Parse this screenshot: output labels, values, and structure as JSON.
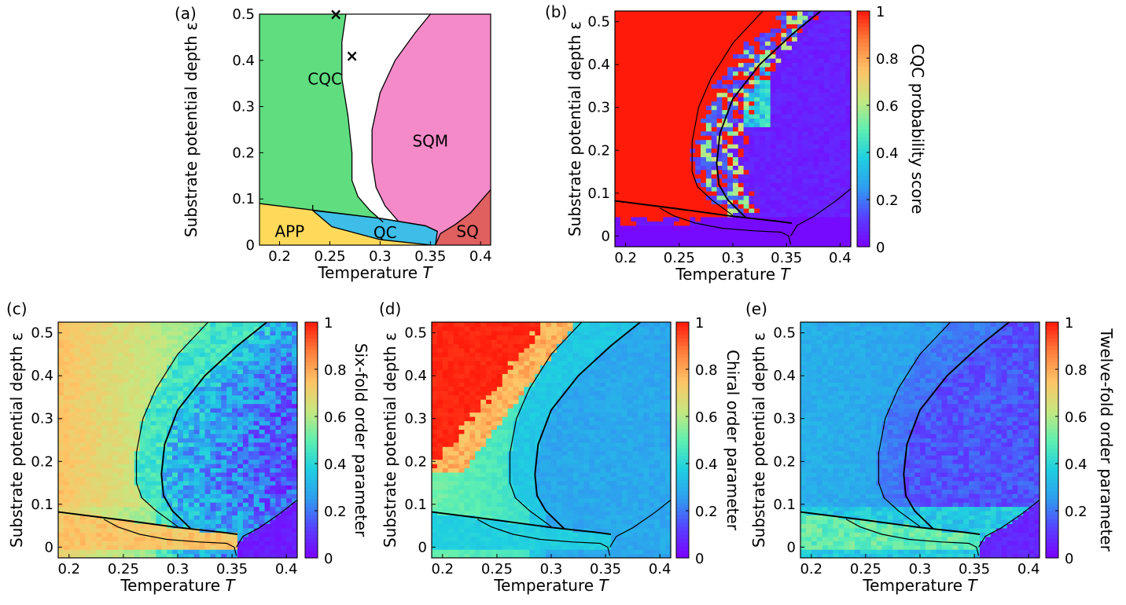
{
  "chart_data": [
    {
      "panel": "(a)",
      "type": "phase-diagram",
      "xlabel": "Temperature",
      "xlabel_var": "T",
      "ylabel": "Substrate potential depth",
      "ylabel_var": "ε",
      "xlim": [
        0.18,
        0.41
      ],
      "ylim": [
        0,
        0.5
      ],
      "xticks": [
        0.2,
        0.25,
        0.3,
        0.35,
        0.4
      ],
      "yticks": [
        0,
        0.1,
        0.2,
        0.3,
        0.4,
        0.5
      ],
      "xtick_labels": [
        "0.2",
        "0.25",
        "0.3",
        "0.35",
        "0.4"
      ],
      "ytick_labels": [
        "0",
        "0.1",
        "0.2",
        "0.3",
        "0.4",
        "0.5"
      ],
      "regions": [
        {
          "label": "CQC",
          "color": "#5fdd7f",
          "label_at": [
            0.245,
            0.36
          ]
        },
        {
          "label": "SQM",
          "color": "#f48ac8",
          "label_at": [
            0.35,
            0.225
          ]
        },
        {
          "label": "APP",
          "color": "#ffd95a",
          "label_at": [
            0.21,
            0.03
          ]
        },
        {
          "label": "QC",
          "color": "#3dbde8",
          "label_at": [
            0.305,
            0.027
          ]
        },
        {
          "label": "SQ",
          "color": "#e05f5f",
          "label_at": [
            0.387,
            0.03
          ]
        }
      ],
      "markers": [
        {
          "symbol": "×",
          "x": 0.256,
          "y": 0.5
        },
        {
          "symbol": "×",
          "x": 0.272,
          "y": 0.41
        }
      ]
    },
    {
      "panel": "(b)",
      "type": "heatmap",
      "xlabel": "Temperature",
      "xlabel_var": "T",
      "ylabel": "Substrate potential depth",
      "ylabel_var": "ε",
      "colorbar_label": "CQC probability score",
      "xlim": [
        0.19,
        0.41
      ],
      "ylim": [
        -0.025,
        0.525
      ],
      "xticks": [
        0.2,
        0.25,
        0.3,
        0.35,
        0.4
      ],
      "yticks": [
        0,
        0.1,
        0.2,
        0.3,
        0.4,
        0.5
      ],
      "xtick_labels": [
        "0.2",
        "0.25",
        "0.3",
        "0.35",
        "0.4"
      ],
      "ytick_labels": [
        "0",
        "0.1",
        "0.2",
        "0.3",
        "0.4",
        "0.5"
      ],
      "colorbar_ticks": [
        "0",
        "0.2",
        "0.4",
        "0.6",
        "0.8",
        "1"
      ],
      "pattern": "cqc"
    },
    {
      "panel": "(c)",
      "type": "heatmap",
      "xlabel": "Temperature",
      "xlabel_var": "T",
      "ylabel": "Substrate potential depth",
      "ylabel_var": "ε",
      "colorbar_label": "Six-fold order parameter",
      "xlim": [
        0.19,
        0.41
      ],
      "ylim": [
        -0.025,
        0.525
      ],
      "xticks": [
        0.2,
        0.25,
        0.3,
        0.35,
        0.4
      ],
      "yticks": [
        0,
        0.1,
        0.2,
        0.3,
        0.4,
        0.5
      ],
      "xtick_labels": [
        "0.2",
        "0.25",
        "0.3",
        "0.35",
        "0.4"
      ],
      "ytick_labels": [
        "0",
        "0.1",
        "0.2",
        "0.3",
        "0.4",
        "0.5"
      ],
      "colorbar_ticks": [
        "0",
        "0.2",
        "0.4",
        "0.6",
        "0.8",
        "1"
      ],
      "pattern": "sixfold"
    },
    {
      "panel": "(d)",
      "type": "heatmap",
      "xlabel": "Temperature",
      "xlabel_var": "T",
      "ylabel": "Substrate potential depth",
      "ylabel_var": "ε",
      "colorbar_label": "Chiral order parameter",
      "xlim": [
        0.19,
        0.41
      ],
      "ylim": [
        -0.025,
        0.525
      ],
      "xticks": [
        0.2,
        0.25,
        0.3,
        0.35,
        0.4
      ],
      "yticks": [
        0,
        0.1,
        0.2,
        0.3,
        0.4,
        0.5
      ],
      "xtick_labels": [
        "0.2",
        "0.25",
        "0.3",
        "0.35",
        "0.4"
      ],
      "ytick_labels": [
        "0",
        "0.1",
        "0.2",
        "0.3",
        "0.4",
        "0.5"
      ],
      "colorbar_ticks": [
        "0",
        "0.2",
        "0.4",
        "0.6",
        "0.8",
        "1"
      ],
      "pattern": "chiral"
    },
    {
      "panel": "(e)",
      "type": "heatmap",
      "xlabel": "Temperature",
      "xlabel_var": "T",
      "ylabel": "Substrate potential depth",
      "ylabel_var": "ε",
      "colorbar_label": "Twelve-fold order parameter",
      "xlim": [
        0.19,
        0.41
      ],
      "ylim": [
        -0.025,
        0.525
      ],
      "xticks": [
        0.2,
        0.25,
        0.3,
        0.35,
        0.4
      ],
      "yticks": [
        0,
        0.1,
        0.2,
        0.3,
        0.4,
        0.5
      ],
      "xtick_labels": [
        "0.2",
        "0.25",
        "0.3",
        "0.35",
        "0.4"
      ],
      "ytick_labels": [
        "0",
        "0.1",
        "0.2",
        "0.3",
        "0.4",
        "0.5"
      ],
      "colorbar_ticks": [
        "0",
        "0.2",
        "0.4",
        "0.6",
        "0.8",
        "1"
      ],
      "pattern": "twelvefold"
    }
  ]
}
